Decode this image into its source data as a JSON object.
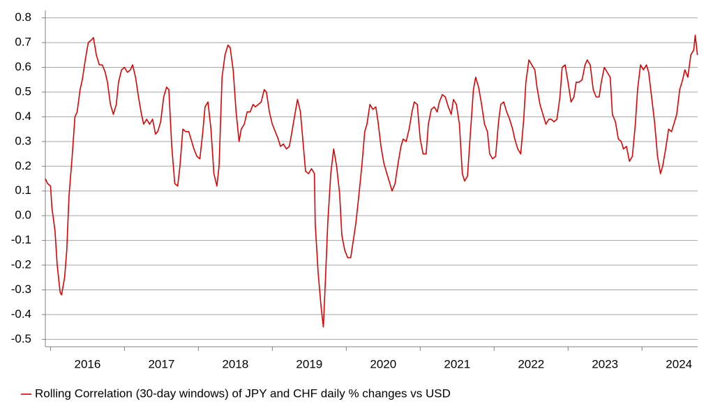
{
  "chart_data": {
    "type": "line",
    "xticks": [
      {
        "value": 2016.5,
        "label": "2016"
      },
      {
        "value": 2017.5,
        "label": "2017"
      },
      {
        "value": 2018.5,
        "label": "2018"
      },
      {
        "value": 2019.5,
        "label": "2019"
      },
      {
        "value": 2020.5,
        "label": "2020"
      },
      {
        "value": 2021.5,
        "label": "2021"
      },
      {
        "value": 2022.5,
        "label": "2022"
      },
      {
        "value": 2023.5,
        "label": "2023"
      },
      {
        "value": 2024.5,
        "label": "2024"
      }
    ],
    "xlim": [
      2015.93,
      2024.8
    ],
    "ylim": [
      -0.53,
      0.83
    ],
    "yticks": [
      0.8,
      0.7,
      0.6,
      0.5,
      0.4,
      0.3,
      0.2,
      0.1,
      {
        "value": 0,
        "label": "0.0"
      },
      -0.1,
      -0.2,
      -0.3,
      -0.4,
      -0.5
    ],
    "grid": true,
    "legend": "bottom-left",
    "x": [
      2015.93,
      2015.96,
      2016.0,
      2016.02,
      2016.06,
      2016.09,
      2016.13,
      2016.15,
      2016.19,
      2016.22,
      2016.25,
      2016.29,
      2016.33,
      2016.36,
      2016.4,
      2016.43,
      2016.47,
      2016.51,
      2016.55,
      2016.58,
      2016.62,
      2016.66,
      2016.7,
      2016.74,
      2016.77,
      2016.81,
      2016.85,
      2016.89,
      2016.92,
      2016.96,
      2017.0,
      2017.04,
      2017.08,
      2017.11,
      2017.15,
      2017.19,
      2017.23,
      2017.26,
      2017.3,
      2017.34,
      2017.38,
      2017.42,
      2017.45,
      2017.49,
      2017.53,
      2017.57,
      2017.6,
      2017.64,
      2017.68,
      2017.72,
      2017.75,
      2017.79,
      2017.83,
      2017.87,
      2017.91,
      2017.94,
      2017.98,
      2018.02,
      2018.06,
      2018.09,
      2018.13,
      2018.17,
      2018.21,
      2018.25,
      2018.28,
      2018.32,
      2018.36,
      2018.4,
      2018.43,
      2018.47,
      2018.51,
      2018.55,
      2018.58,
      2018.62,
      2018.66,
      2018.7,
      2018.74,
      2018.77,
      2018.81,
      2018.85,
      2018.89,
      2018.92,
      2018.96,
      2019.0,
      2019.04,
      2019.08,
      2019.11,
      2019.15,
      2019.19,
      2019.23,
      2019.26,
      2019.3,
      2019.34,
      2019.38,
      2019.42,
      2019.45,
      2019.49,
      2019.53,
      2019.57,
      2019.58,
      2019.62,
      2019.66,
      2019.69,
      2019.72,
      2019.75,
      2019.79,
      2019.83,
      2019.87,
      2019.91,
      2019.94,
      2019.98,
      2020.02,
      2020.06,
      2020.09,
      2020.13,
      2020.17,
      2020.21,
      2020.25,
      2020.28,
      2020.32,
      2020.36,
      2020.4,
      2020.43,
      2020.47,
      2020.51,
      2020.55,
      2020.58,
      2020.62,
      2020.66,
      2020.7,
      2020.74,
      2020.77,
      2020.81,
      2020.85,
      2020.89,
      2020.92,
      2020.96,
      2021.0,
      2021.04,
      2021.08,
      2021.11,
      2021.15,
      2021.19,
      2021.23,
      2021.26,
      2021.3,
      2021.34,
      2021.38,
      2021.42,
      2021.45,
      2021.49,
      2021.53,
      2021.57,
      2021.6,
      2021.64,
      2021.68,
      2021.72,
      2021.75,
      2021.79,
      2021.83,
      2021.87,
      2021.91,
      2021.94,
      2021.98,
      2022.02,
      2022.06,
      2022.09,
      2022.13,
      2022.17,
      2022.21,
      2022.25,
      2022.28,
      2022.32,
      2022.36,
      2022.4,
      2022.43,
      2022.47,
      2022.51,
      2022.55,
      2022.58,
      2022.62,
      2022.66,
      2022.7,
      2022.74,
      2022.77,
      2022.81,
      2022.85,
      2022.89,
      2022.92,
      2022.96,
      2023.0,
      2023.04,
      2023.08,
      2023.11,
      2023.15,
      2023.19,
      2023.23,
      2023.26,
      2023.3,
      2023.34,
      2023.38,
      2023.42,
      2023.45,
      2023.49,
      2023.53,
      2023.57,
      2023.6,
      2023.64,
      2023.68,
      2023.72,
      2023.75,
      2023.79,
      2023.83,
      2023.87,
      2023.91,
      2023.94,
      2023.98,
      2024.02,
      2024.06,
      2024.09,
      2024.13,
      2024.17,
      2024.21,
      2024.25,
      2024.28,
      2024.32,
      2024.36,
      2024.4,
      2024.43,
      2024.47,
      2024.51,
      2024.55,
      2024.58,
      2024.62,
      2024.66,
      2024.7,
      2024.72,
      2024.75
    ],
    "series": [
      {
        "name": "Rolling Correlation (30-day windows) of JPY and CHF daily % changes vs USD",
        "color": "#e00000",
        "values": [
          0.15,
          0.13,
          0.12,
          0.03,
          -0.06,
          -0.2,
          -0.31,
          -0.32,
          -0.25,
          -0.14,
          0.08,
          0.23,
          0.4,
          0.42,
          0.51,
          0.55,
          0.63,
          0.7,
          0.71,
          0.72,
          0.65,
          0.61,
          0.61,
          0.58,
          0.54,
          0.45,
          0.41,
          0.45,
          0.54,
          0.59,
          0.6,
          0.58,
          0.59,
          0.61,
          0.56,
          0.48,
          0.41,
          0.37,
          0.39,
          0.37,
          0.39,
          0.33,
          0.34,
          0.38,
          0.48,
          0.52,
          0.51,
          0.28,
          0.13,
          0.12,
          0.2,
          0.35,
          0.34,
          0.34,
          0.3,
          0.27,
          0.24,
          0.23,
          0.34,
          0.44,
          0.46,
          0.35,
          0.17,
          0.12,
          0.2,
          0.56,
          0.65,
          0.69,
          0.68,
          0.59,
          0.42,
          0.3,
          0.35,
          0.37,
          0.42,
          0.42,
          0.45,
          0.44,
          0.45,
          0.46,
          0.51,
          0.5,
          0.42,
          0.37,
          0.34,
          0.31,
          0.28,
          0.29,
          0.27,
          0.28,
          0.33,
          0.4,
          0.47,
          0.42,
          0.28,
          0.18,
          0.17,
          0.19,
          0.17,
          -0.03,
          -0.23,
          -0.37,
          -0.45,
          -0.25,
          -0.03,
          0.17,
          0.27,
          0.2,
          0.09,
          -0.08,
          -0.14,
          -0.17,
          -0.17,
          -0.11,
          -0.03,
          0.08,
          0.2,
          0.34,
          0.37,
          0.45,
          0.43,
          0.44,
          0.38,
          0.28,
          0.21,
          0.17,
          0.14,
          0.1,
          0.13,
          0.21,
          0.28,
          0.31,
          0.3,
          0.35,
          0.42,
          0.46,
          0.45,
          0.31,
          0.25,
          0.25,
          0.37,
          0.43,
          0.44,
          0.42,
          0.46,
          0.49,
          0.48,
          0.44,
          0.41,
          0.47,
          0.45,
          0.37,
          0.17,
          0.14,
          0.16,
          0.34,
          0.51,
          0.56,
          0.52,
          0.45,
          0.37,
          0.34,
          0.25,
          0.23,
          0.24,
          0.38,
          0.45,
          0.46,
          0.42,
          0.39,
          0.35,
          0.31,
          0.27,
          0.25,
          0.39,
          0.54,
          0.63,
          0.61,
          0.59,
          0.52,
          0.45,
          0.41,
          0.37,
          0.39,
          0.39,
          0.38,
          0.39,
          0.48,
          0.6,
          0.61,
          0.54,
          0.46,
          0.48,
          0.54,
          0.54,
          0.55,
          0.61,
          0.63,
          0.61,
          0.51,
          0.48,
          0.48,
          0.54,
          0.6,
          0.58,
          0.56,
          0.41,
          0.38,
          0.31,
          0.3,
          0.27,
          0.28,
          0.22,
          0.24,
          0.37,
          0.51,
          0.61,
          0.59,
          0.61,
          0.58,
          0.48,
          0.38,
          0.24,
          0.17,
          0.2,
          0.27,
          0.35,
          0.34,
          0.37,
          0.41,
          0.51,
          0.55,
          0.59,
          0.56,
          0.65,
          0.67,
          0.73,
          0.65
        ]
      }
    ]
  }
}
